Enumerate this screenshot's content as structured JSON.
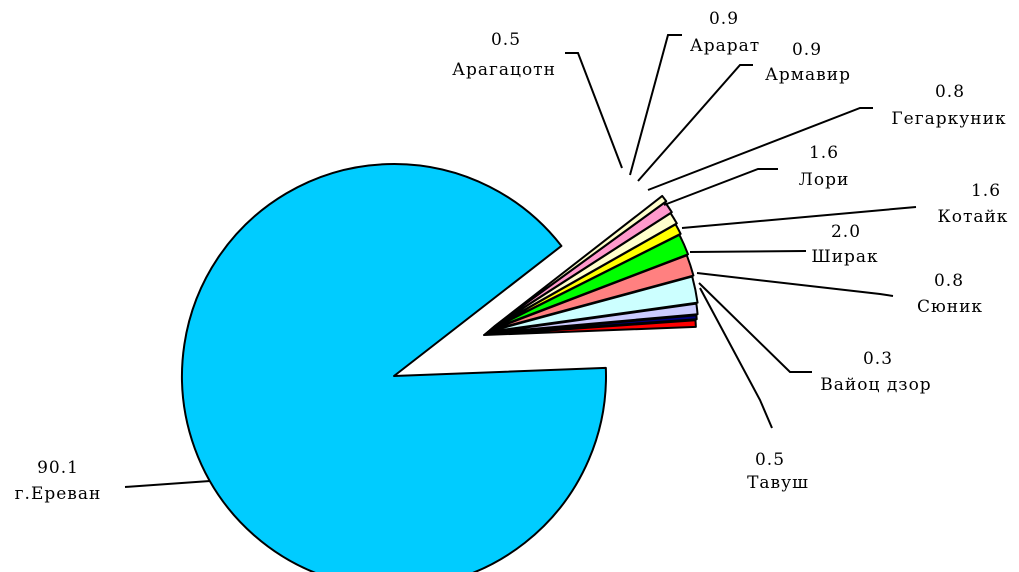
{
  "chart_data": {
    "type": "pie",
    "title": "",
    "start_angle_deg": 2.2,
    "direction": "counterclockwise",
    "exploded": true,
    "slices": [
      {
        "name": "Тавуш",
        "value": 0.5,
        "color": "#FF0000"
      },
      {
        "name": "Вайоц дзор",
        "value": 0.3,
        "color": "#000080"
      },
      {
        "name": "Сюник",
        "value": 0.8,
        "color": "#CCCCFF"
      },
      {
        "name": "Ширак",
        "value": 2.0,
        "color": "#CCFFFF"
      },
      {
        "name": "Котайк",
        "value": 1.6,
        "color": "#FF8080"
      },
      {
        "name": "Лори",
        "value": 1.6,
        "color": "#00FF00"
      },
      {
        "name": "Гегаркуник",
        "value": 0.8,
        "color": "#FFFF00"
      },
      {
        "name": "Армавир",
        "value": 0.9,
        "color": "#FFFFCC"
      },
      {
        "name": "Арарат",
        "value": 0.9,
        "color": "#FF99CC"
      },
      {
        "name": "Арагацотн",
        "value": 0.5,
        "color": "#FFFFCC"
      },
      {
        "name": "г.Ереван",
        "value": 90.1,
        "color": "#00CCFF"
      }
    ],
    "labels": [
      {
        "name": "Тавуш",
        "value_text": "0.5",
        "name_text": "Тавуш"
      },
      {
        "name": "Вайоц дзор",
        "value_text": "0.3",
        "name_text": "Вайоц дзор"
      },
      {
        "name": "Сюник",
        "value_text": "0.8",
        "name_text": "Сюник"
      },
      {
        "name": "Ширак",
        "value_text": "2.0",
        "name_text": "Ширак"
      },
      {
        "name": "Котайк",
        "value_text": "1.6",
        "name_text": "Котайк"
      },
      {
        "name": "Лори",
        "value_text": "1.6",
        "name_text": "Лори"
      },
      {
        "name": "Гегаркуник",
        "value_text": "0.8",
        "name_text": "Гегаркуник"
      },
      {
        "name": "Армавир",
        "value_text": "0.9",
        "name_text": "Армавир"
      },
      {
        "name": "Арарат",
        "value_text": "0.9",
        "name_text": "Арарат"
      },
      {
        "name": "Арагацотн",
        "value_text": "0.5",
        "name_text": "Арагацотн"
      },
      {
        "name": "г.Ереван",
        "value_text": "90.1",
        "name_text": "г.Ереван"
      }
    ]
  }
}
